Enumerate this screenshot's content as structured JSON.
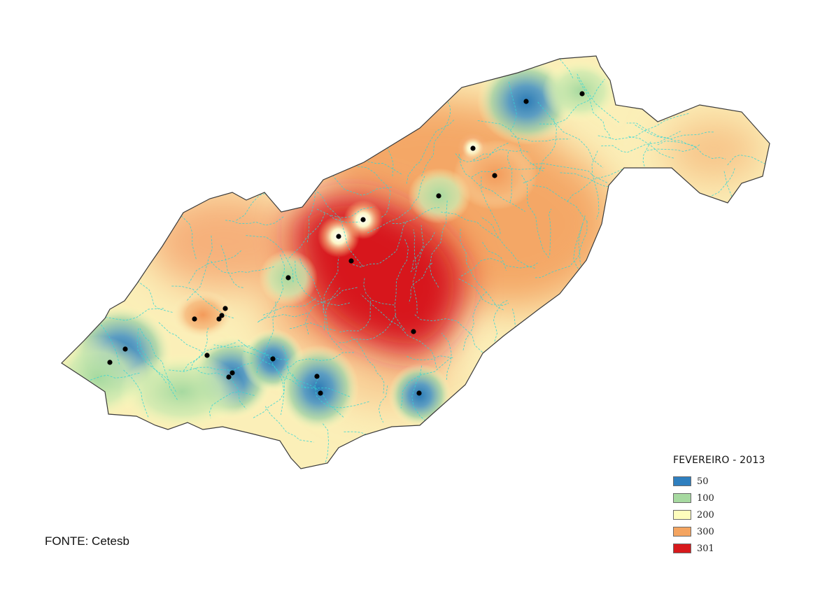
{
  "legend": {
    "title": "FEVEREIRO - 2013",
    "classes": [
      {
        "label": "50",
        "color": "#2f7fbf"
      },
      {
        "label": "100",
        "color": "#a6d9a0"
      },
      {
        "label": "200",
        "color": "#fefdbd"
      },
      {
        "label": "300",
        "color": "#f4a460"
      },
      {
        "label": "301",
        "color": "#d7191c"
      }
    ]
  },
  "source_note": "FONTE: Cetesb",
  "map": {
    "background_color": "#fdf6c4",
    "river_color": "#33d6d6",
    "station_marker_color": "#000000"
  }
}
